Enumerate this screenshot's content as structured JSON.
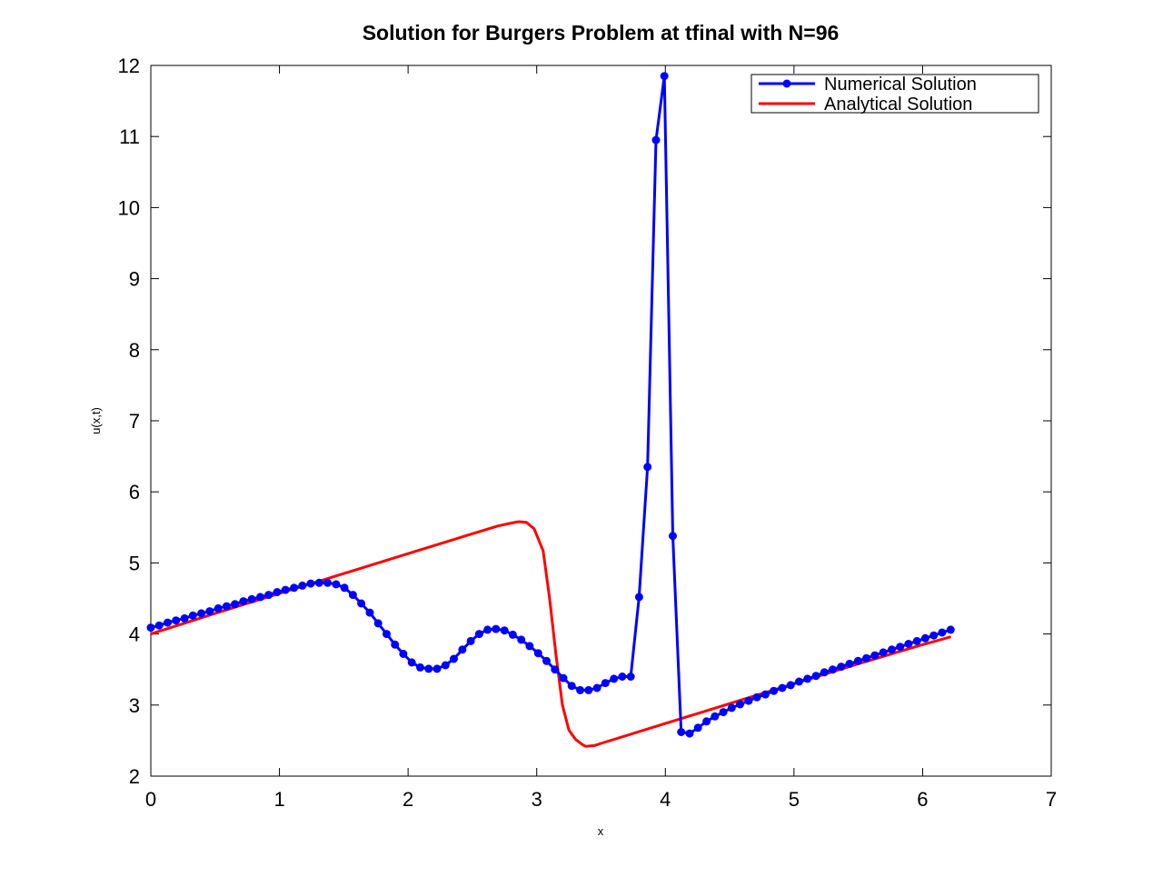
{
  "chart_data": {
    "type": "line",
    "title": "Solution for Burgers Problem at tfinal with N=96",
    "xlabel": "x",
    "ylabel": "u(x,t)",
    "xlim": [
      0,
      7
    ],
    "ylim": [
      2,
      12
    ],
    "xticks": [
      "0",
      "1",
      "2",
      "3",
      "4",
      "5",
      "6",
      "7"
    ],
    "yticks": [
      "2",
      "3",
      "4",
      "5",
      "6",
      "7",
      "8",
      "9",
      "10",
      "11",
      "12"
    ],
    "grid": false,
    "legend_position": "top-right",
    "series": [
      {
        "name": "Numerical Solution",
        "color": "#0000ff",
        "marker": "circle",
        "x": [
          0,
          0.065,
          0.131,
          0.196,
          0.262,
          0.327,
          0.393,
          0.458,
          0.524,
          0.589,
          0.654,
          0.72,
          0.785,
          0.851,
          0.916,
          0.982,
          1.047,
          1.113,
          1.178,
          1.243,
          1.309,
          1.374,
          1.44,
          1.505,
          1.571,
          1.636,
          1.702,
          1.767,
          1.833,
          1.898,
          1.963,
          2.029,
          2.094,
          2.16,
          2.225,
          2.291,
          2.356,
          2.422,
          2.487,
          2.553,
          2.618,
          2.683,
          2.749,
          2.814,
          2.88,
          2.945,
          3.011,
          3.076,
          3.142,
          3.207,
          3.272,
          3.338,
          3.403,
          3.469,
          3.534,
          3.6,
          3.665,
          3.731,
          3.796,
          3.862,
          3.927,
          3.992,
          4.058,
          4.123,
          4.189,
          4.254,
          4.32,
          4.385,
          4.451,
          4.516,
          4.581,
          4.647,
          4.712,
          4.778,
          4.843,
          4.909,
          4.974,
          5.04,
          5.105,
          5.171,
          5.236,
          5.301,
          5.367,
          5.432,
          5.498,
          5.563,
          5.629,
          5.694,
          5.76,
          5.825,
          5.89,
          5.956,
          6.021,
          6.087,
          6.152,
          6.218
        ],
        "y": [
          4.09,
          4.12,
          4.16,
          4.19,
          4.22,
          4.26,
          4.29,
          4.32,
          4.36,
          4.39,
          4.42,
          4.46,
          4.49,
          4.52,
          4.55,
          4.59,
          4.62,
          4.65,
          4.68,
          4.71,
          4.72,
          4.72,
          4.7,
          4.65,
          4.55,
          4.43,
          4.3,
          4.15,
          4.0,
          3.85,
          3.72,
          3.6,
          3.53,
          3.51,
          3.51,
          3.56,
          3.65,
          3.78,
          3.9,
          4.0,
          4.06,
          4.07,
          4.05,
          3.99,
          3.92,
          3.83,
          3.73,
          3.62,
          3.5,
          3.38,
          3.27,
          3.21,
          3.21,
          3.24,
          3.31,
          3.37,
          3.4,
          3.4,
          4.52,
          6.35,
          10.95,
          11.85,
          5.38,
          2.62,
          2.6,
          2.68,
          2.77,
          2.84,
          2.9,
          2.96,
          3.01,
          3.06,
          3.11,
          3.15,
          3.2,
          3.24,
          3.28,
          3.33,
          3.37,
          3.41,
          3.46,
          3.5,
          3.54,
          3.58,
          3.62,
          3.66,
          3.7,
          3.74,
          3.78,
          3.82,
          3.86,
          3.9,
          3.94,
          3.98,
          4.02,
          4.06
        ]
      },
      {
        "name": "Analytical Solution",
        "color": "#ff0000",
        "marker": "none",
        "x": [
          0,
          0.5,
          1.0,
          1.5,
          2.0,
          2.5,
          2.7,
          2.8,
          2.86,
          2.92,
          2.98,
          3.05,
          3.1,
          3.15,
          3.2,
          3.25,
          3.3,
          3.35,
          3.38,
          3.45,
          3.5,
          4.0,
          4.5,
          5.0,
          5.5,
          6.0,
          6.22
        ],
        "y": [
          4.0,
          4.29,
          4.57,
          4.85,
          5.13,
          5.41,
          5.52,
          5.56,
          5.58,
          5.57,
          5.48,
          5.17,
          4.5,
          3.7,
          3.0,
          2.65,
          2.52,
          2.45,
          2.42,
          2.43,
          2.46,
          2.74,
          3.02,
          3.3,
          3.58,
          3.85,
          3.96
        ]
      }
    ]
  }
}
